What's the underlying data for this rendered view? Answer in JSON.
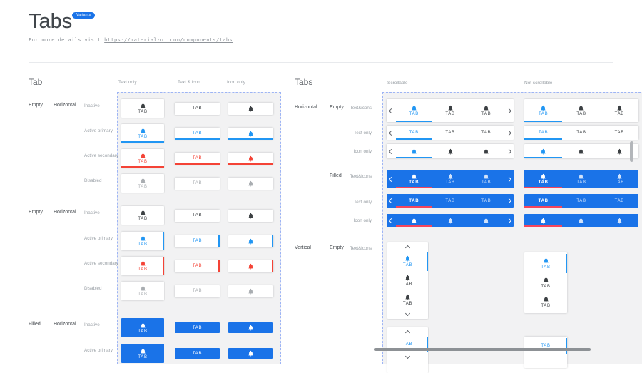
{
  "header": {
    "title": "Tabs",
    "badge": "Variants",
    "subtitle_prefix": "For more details visit",
    "subtitle_link": "https://material-ui.com/components/tabs"
  },
  "tab_label": "TAB",
  "colors": {
    "primary": "#2196f3",
    "secondary": "#f44336",
    "inactive": "#3c4043",
    "disabled": "#a9adb1",
    "filled_bg": "#1a73e8",
    "filled_indicator": "#f5455c",
    "grid_bg": "#f2f2f3",
    "dashed_border": "#9db4f5",
    "scrollbar": "#9aa0a6"
  },
  "left": {
    "title": "Tab",
    "col_headers": [
      "Text only",
      "Text & icon",
      "Icon only"
    ],
    "cell_contents": [
      "icon-text",
      "text",
      "icon"
    ],
    "groups": [
      {
        "fill": "Empty",
        "orientation": "Horizontal",
        "indicator": "bottom",
        "rows": [
          {
            "label": "Inactive",
            "state": "inactive"
          },
          {
            "label": "Active primary",
            "state": "primary"
          },
          {
            "label": "Active secondary",
            "state": "secondary"
          },
          {
            "label": "Disabled",
            "state": "disabled"
          }
        ]
      },
      {
        "fill": "Empty",
        "orientation": "Horizontal",
        "indicator": "right",
        "rows": [
          {
            "label": "Inactive",
            "state": "inactive"
          },
          {
            "label": "Active primary",
            "state": "primary"
          },
          {
            "label": "Active secondary",
            "state": "secondary"
          },
          {
            "label": "Disabled",
            "state": "disabled"
          }
        ]
      },
      {
        "fill": "Filled",
        "orientation": "Horizontal",
        "indicator": "bottom",
        "rows": [
          {
            "label": "Inactive",
            "state": "filled"
          },
          {
            "label": "Active primary",
            "state": "filled"
          }
        ]
      }
    ]
  },
  "right": {
    "title": "Tabs",
    "col_headers": [
      "Scrollable",
      "Not scrollable"
    ],
    "h_groups": [
      {
        "orientation": "Horizontal",
        "fill": "Empty",
        "rows": [
          {
            "label": "Text&icons",
            "content": "icon-text"
          },
          {
            "label": "Text only",
            "content": "text"
          },
          {
            "label": "Icon only",
            "content": "icon"
          }
        ]
      },
      {
        "orientation": "",
        "fill": "Filled",
        "rows": [
          {
            "label": "Text&icons",
            "content": "icon-text"
          },
          {
            "label": "Text only",
            "content": "text"
          },
          {
            "label": "Icon only",
            "content": "icon"
          }
        ]
      }
    ],
    "v_group": {
      "orientation": "Vertical",
      "fill": "Empty",
      "rows": [
        {
          "label": "Text&icons",
          "content": "icon-text"
        },
        {
          "label": "",
          "content": "text"
        }
      ]
    }
  }
}
